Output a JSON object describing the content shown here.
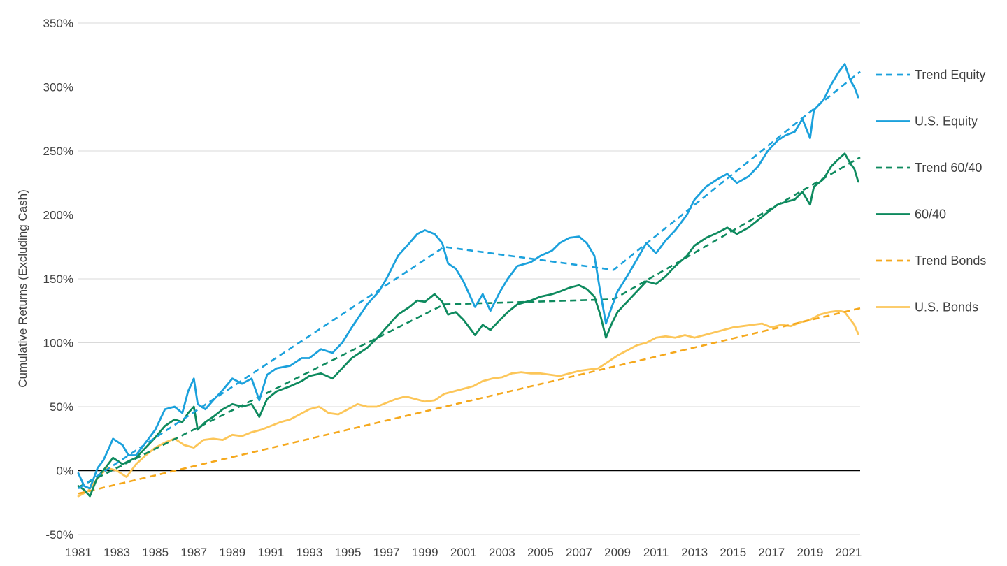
{
  "chart_data": {
    "type": "line",
    "title": "",
    "xlabel": "",
    "ylabel": "Cumulative Returns (Excluding Cash)",
    "xlim": [
      1981,
      2021.6
    ],
    "ylim": [
      -50,
      350
    ],
    "x_ticks": [
      "1981",
      "1983",
      "1985",
      "1987",
      "1989",
      "1991",
      "1993",
      "1995",
      "1997",
      "1999",
      "2001",
      "2003",
      "2005",
      "2007",
      "2009",
      "2011",
      "2013",
      "2015",
      "2017",
      "2019",
      "2021"
    ],
    "y_ticks": [
      "-50%",
      "0%",
      "50%",
      "100%",
      "150%",
      "200%",
      "250%",
      "300%",
      "350%"
    ],
    "y_tick_values": [
      -50,
      0,
      50,
      100,
      150,
      200,
      250,
      300,
      350
    ],
    "grid": "horizontal",
    "legend_position": "right",
    "series": [
      {
        "name": "Trend Equity",
        "style": "dashed",
        "color": "#1ba1dc",
        "points": [
          [
            1981,
            -14
          ],
          [
            2000,
            175
          ],
          [
            2008.8,
            157
          ],
          [
            2021.6,
            312
          ]
        ]
      },
      {
        "name": "U.S. Equity",
        "style": "solid",
        "color": "#1ba1dc",
        "points": [
          [
            1981,
            -2
          ],
          [
            1981.3,
            -12
          ],
          [
            1981.6,
            -14
          ],
          [
            1982,
            2
          ],
          [
            1982.3,
            8
          ],
          [
            1982.6,
            18
          ],
          [
            1982.8,
            25
          ],
          [
            1983.3,
            20
          ],
          [
            1983.6,
            12
          ],
          [
            1984,
            12
          ],
          [
            1984.5,
            22
          ],
          [
            1985,
            32
          ],
          [
            1985.5,
            48
          ],
          [
            1986,
            50
          ],
          [
            1986.4,
            45
          ],
          [
            1986.7,
            62
          ],
          [
            1987,
            72
          ],
          [
            1987.2,
            52
          ],
          [
            1987.6,
            48
          ],
          [
            1988,
            55
          ],
          [
            1988.5,
            63
          ],
          [
            1989,
            72
          ],
          [
            1989.5,
            68
          ],
          [
            1990,
            72
          ],
          [
            1990.4,
            55
          ],
          [
            1990.8,
            75
          ],
          [
            1991.3,
            80
          ],
          [
            1992,
            82
          ],
          [
            1992.6,
            88
          ],
          [
            1993,
            88
          ],
          [
            1993.6,
            95
          ],
          [
            1994.2,
            92
          ],
          [
            1994.7,
            100
          ],
          [
            1995.2,
            112
          ],
          [
            1996,
            130
          ],
          [
            1996.6,
            140
          ],
          [
            1997,
            150
          ],
          [
            1997.6,
            168
          ],
          [
            1998.2,
            178
          ],
          [
            1998.6,
            185
          ],
          [
            1999,
            188
          ],
          [
            1999.5,
            185
          ],
          [
            1999.9,
            178
          ],
          [
            2000.2,
            162
          ],
          [
            2000.6,
            158
          ],
          [
            2001,
            148
          ],
          [
            2001.3,
            138
          ],
          [
            2001.6,
            128
          ],
          [
            2002,
            138
          ],
          [
            2002.4,
            125
          ],
          [
            2002.9,
            140
          ],
          [
            2003.3,
            150
          ],
          [
            2003.8,
            160
          ],
          [
            2004.5,
            163
          ],
          [
            2005,
            168
          ],
          [
            2005.6,
            172
          ],
          [
            2006,
            178
          ],
          [
            2006.5,
            182
          ],
          [
            2007,
            183
          ],
          [
            2007.4,
            178
          ],
          [
            2007.8,
            168
          ],
          [
            2008.1,
            140
          ],
          [
            2008.4,
            115
          ],
          [
            2008.7,
            128
          ],
          [
            2009,
            140
          ],
          [
            2009.5,
            152
          ],
          [
            2010,
            165
          ],
          [
            2010.5,
            178
          ],
          [
            2011,
            170
          ],
          [
            2011.5,
            180
          ],
          [
            2012,
            188
          ],
          [
            2012.6,
            200
          ],
          [
            2013,
            212
          ],
          [
            2013.6,
            222
          ],
          [
            2014.2,
            228
          ],
          [
            2014.7,
            232
          ],
          [
            2015.2,
            225
          ],
          [
            2015.8,
            230
          ],
          [
            2016.3,
            238
          ],
          [
            2016.8,
            250
          ],
          [
            2017.3,
            258
          ],
          [
            2017.7,
            262
          ],
          [
            2018.2,
            265
          ],
          [
            2018.6,
            275
          ],
          [
            2019,
            260
          ],
          [
            2019.2,
            282
          ],
          [
            2019.7,
            290
          ],
          [
            2020.1,
            302
          ],
          [
            2020.5,
            312
          ],
          [
            2020.8,
            318
          ],
          [
            2021.1,
            305
          ],
          [
            2021.3,
            300
          ],
          [
            2021.5,
            292
          ]
        ]
      },
      {
        "name": "Trend 60/40",
        "style": "dashed",
        "color": "#0e8a5e",
        "points": [
          [
            1981,
            -13
          ],
          [
            2000,
            130
          ],
          [
            2008.8,
            134
          ],
          [
            2021.6,
            245
          ]
        ]
      },
      {
        "name": "60/40",
        "style": "solid",
        "color": "#0e8a5e",
        "points": [
          [
            1981,
            -12
          ],
          [
            1981.3,
            -15
          ],
          [
            1981.6,
            -20
          ],
          [
            1982,
            -5
          ],
          [
            1982.4,
            2
          ],
          [
            1982.8,
            10
          ],
          [
            1983.3,
            5
          ],
          [
            1983.7,
            8
          ],
          [
            1984,
            10
          ],
          [
            1984.5,
            18
          ],
          [
            1985,
            26
          ],
          [
            1985.5,
            35
          ],
          [
            1986,
            40
          ],
          [
            1986.4,
            38
          ],
          [
            1986.7,
            45
          ],
          [
            1987,
            50
          ],
          [
            1987.2,
            32
          ],
          [
            1987.6,
            38
          ],
          [
            1988,
            42
          ],
          [
            1988.5,
            48
          ],
          [
            1989,
            52
          ],
          [
            1989.5,
            50
          ],
          [
            1990,
            52
          ],
          [
            1990.4,
            42
          ],
          [
            1990.8,
            56
          ],
          [
            1991.3,
            62
          ],
          [
            1992,
            66
          ],
          [
            1992.6,
            70
          ],
          [
            1993,
            74
          ],
          [
            1993.6,
            76
          ],
          [
            1994.2,
            72
          ],
          [
            1994.7,
            80
          ],
          [
            1995.2,
            88
          ],
          [
            1996,
            96
          ],
          [
            1996.6,
            105
          ],
          [
            1997,
            112
          ],
          [
            1997.6,
            122
          ],
          [
            1998.2,
            128
          ],
          [
            1998.6,
            133
          ],
          [
            1999,
            132
          ],
          [
            1999.5,
            138
          ],
          [
            1999.9,
            132
          ],
          [
            2000.2,
            122
          ],
          [
            2000.6,
            124
          ],
          [
            2001,
            118
          ],
          [
            2001.3,
            112
          ],
          [
            2001.6,
            106
          ],
          [
            2002,
            114
          ],
          [
            2002.4,
            110
          ],
          [
            2002.9,
            118
          ],
          [
            2003.3,
            124
          ],
          [
            2003.8,
            130
          ],
          [
            2004.5,
            133
          ],
          [
            2005,
            136
          ],
          [
            2005.6,
            138
          ],
          [
            2006,
            140
          ],
          [
            2006.5,
            143
          ],
          [
            2007,
            145
          ],
          [
            2007.4,
            142
          ],
          [
            2007.8,
            136
          ],
          [
            2008.1,
            122
          ],
          [
            2008.4,
            104
          ],
          [
            2008.7,
            115
          ],
          [
            2009,
            124
          ],
          [
            2009.5,
            132
          ],
          [
            2010,
            140
          ],
          [
            2010.5,
            148
          ],
          [
            2011,
            146
          ],
          [
            2011.5,
            152
          ],
          [
            2012,
            160
          ],
          [
            2012.6,
            168
          ],
          [
            2013,
            176
          ],
          [
            2013.6,
            182
          ],
          [
            2014.2,
            186
          ],
          [
            2014.7,
            190
          ],
          [
            2015.2,
            185
          ],
          [
            2015.8,
            190
          ],
          [
            2016.3,
            196
          ],
          [
            2016.8,
            202
          ],
          [
            2017.3,
            208
          ],
          [
            2017.7,
            210
          ],
          [
            2018.2,
            212
          ],
          [
            2018.6,
            218
          ],
          [
            2019,
            208
          ],
          [
            2019.2,
            222
          ],
          [
            2019.7,
            228
          ],
          [
            2020.1,
            238
          ],
          [
            2020.5,
            244
          ],
          [
            2020.8,
            248
          ],
          [
            2021.1,
            240
          ],
          [
            2021.3,
            236
          ],
          [
            2021.5,
            226
          ]
        ]
      },
      {
        "name": "Trend Bonds",
        "style": "dashed",
        "color": "#f5a81c",
        "points": [
          [
            1981,
            -18
          ],
          [
            2021.6,
            127
          ]
        ]
      },
      {
        "name": "U.S. Bonds",
        "style": "solid",
        "color": "#fcc659",
        "points": [
          [
            1981,
            -20
          ],
          [
            1981.5,
            -16
          ],
          [
            1982,
            -6
          ],
          [
            1982.5,
            2
          ],
          [
            1983,
            0
          ],
          [
            1983.5,
            -5
          ],
          [
            1984,
            5
          ],
          [
            1984.5,
            12
          ],
          [
            1985,
            18
          ],
          [
            1985.5,
            22
          ],
          [
            1986,
            25
          ],
          [
            1986.5,
            20
          ],
          [
            1987,
            18
          ],
          [
            1987.5,
            24
          ],
          [
            1988,
            25
          ],
          [
            1988.5,
            24
          ],
          [
            1989,
            28
          ],
          [
            1989.5,
            27
          ],
          [
            1990,
            30
          ],
          [
            1990.5,
            32
          ],
          [
            1991,
            35
          ],
          [
            1991.5,
            38
          ],
          [
            1992,
            40
          ],
          [
            1992.5,
            44
          ],
          [
            1993,
            48
          ],
          [
            1993.5,
            50
          ],
          [
            1994,
            45
          ],
          [
            1994.5,
            44
          ],
          [
            1995,
            48
          ],
          [
            1995.5,
            52
          ],
          [
            1996,
            50
          ],
          [
            1996.5,
            50
          ],
          [
            1997,
            53
          ],
          [
            1997.5,
            56
          ],
          [
            1998,
            58
          ],
          [
            1998.5,
            56
          ],
          [
            1999,
            54
          ],
          [
            1999.5,
            55
          ],
          [
            2000,
            60
          ],
          [
            2000.5,
            62
          ],
          [
            2001,
            64
          ],
          [
            2001.5,
            66
          ],
          [
            2002,
            70
          ],
          [
            2002.5,
            72
          ],
          [
            2003,
            73
          ],
          [
            2003.5,
            76
          ],
          [
            2004,
            77
          ],
          [
            2004.5,
            76
          ],
          [
            2005,
            76
          ],
          [
            2005.5,
            75
          ],
          [
            2006,
            74
          ],
          [
            2006.5,
            76
          ],
          [
            2007,
            78
          ],
          [
            2007.5,
            79
          ],
          [
            2008,
            80
          ],
          [
            2008.5,
            85
          ],
          [
            2009,
            90
          ],
          [
            2009.5,
            94
          ],
          [
            2010,
            98
          ],
          [
            2010.5,
            100
          ],
          [
            2011,
            104
          ],
          [
            2011.5,
            105
          ],
          [
            2012,
            104
          ],
          [
            2012.5,
            106
          ],
          [
            2013,
            104
          ],
          [
            2013.5,
            106
          ],
          [
            2014,
            108
          ],
          [
            2014.5,
            110
          ],
          [
            2015,
            112
          ],
          [
            2015.5,
            113
          ],
          [
            2016,
            114
          ],
          [
            2016.5,
            115
          ],
          [
            2017,
            112
          ],
          [
            2017.5,
            114
          ],
          [
            2018,
            113
          ],
          [
            2018.5,
            116
          ],
          [
            2019,
            118
          ],
          [
            2019.5,
            122
          ],
          [
            2020,
            124
          ],
          [
            2020.5,
            125
          ],
          [
            2020.8,
            124
          ],
          [
            2021.1,
            118
          ],
          [
            2021.3,
            114
          ],
          [
            2021.5,
            107
          ]
        ]
      }
    ]
  }
}
